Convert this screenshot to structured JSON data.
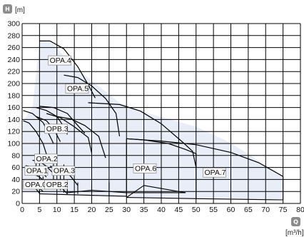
{
  "colors": {
    "region_fill": "#e8edf7",
    "label_fill": "#f7f7f7",
    "axis_letter_bg": "#8c8c8c",
    "grid": "#000000",
    "curve": "#000000"
  },
  "chart_data": {
    "type": "line",
    "xaxis": {
      "letter": "Q",
      "unit": "[m³/h]",
      "lim": [
        0,
        80
      ],
      "ticks": [
        0,
        5,
        10,
        15,
        20,
        25,
        30,
        35,
        40,
        45,
        50,
        55,
        60,
        65,
        70,
        75,
        80
      ]
    },
    "yaxis": {
      "letter": "H",
      "unit": "[m]",
      "lim": [
        0,
        300
      ],
      "ticks": [
        0,
        20,
        40,
        60,
        80,
        100,
        120,
        140,
        160,
        180,
        200,
        220,
        240,
        260,
        280,
        300
      ]
    },
    "grid": true,
    "overall_envelope": [
      [
        0,
        18
      ],
      [
        0.3,
        138
      ],
      [
        3,
        160
      ],
      [
        5,
        271
      ],
      [
        8,
        271
      ],
      [
        15,
        228
      ],
      [
        28,
        168
      ],
      [
        34,
        154
      ],
      [
        50,
        128
      ],
      [
        60,
        101
      ],
      [
        75,
        45
      ],
      [
        75,
        6
      ],
      [
        50,
        8
      ],
      [
        20,
        12
      ],
      [
        5,
        16
      ]
    ],
    "series": [
      {
        "name": "OPA.0",
        "curves": [
          [
            [
              0.3,
              30
            ],
            [
              2,
              29
            ],
            [
              4,
              24
            ],
            [
              5,
              17
            ]
          ],
          [
            [
              0.3,
              37
            ],
            [
              2,
              35
            ],
            [
              4,
              30
            ],
            [
              6,
              20
            ]
          ]
        ]
      },
      {
        "name": "OPB.2",
        "curves": [
          [
            [
              5,
              35
            ],
            [
              8,
              34
            ],
            [
              11,
              28
            ],
            [
              13,
              16
            ]
          ]
        ]
      },
      {
        "name": "OPA.1",
        "curves": [
          [
            [
              1,
              52
            ],
            [
              3,
              50
            ],
            [
              5,
              44
            ],
            [
              7,
              34
            ]
          ],
          [
            [
              1,
              63
            ],
            [
              3,
              61
            ],
            [
              5,
              55
            ],
            [
              7,
              44
            ]
          ]
        ]
      },
      {
        "name": "OPA.2",
        "curves": [
          [
            [
              3,
              72
            ],
            [
              5,
              70
            ],
            [
              7,
              62
            ],
            [
              9,
              50
            ]
          ]
        ]
      },
      {
        "name": "OPA.3",
        "curves": [
          [
            [
              8,
              62
            ],
            [
              10,
              60
            ],
            [
              12,
              55
            ],
            [
              14,
              45
            ],
            [
              16,
              30
            ]
          ]
        ]
      },
      {
        "name": "OPB.3",
        "curves": [
          [
            [
              0.3,
              138
            ],
            [
              2,
              134
            ],
            [
              4,
              120
            ],
            [
              6,
              100
            ],
            [
              7,
              82
            ]
          ],
          [
            [
              0.3,
              155
            ],
            [
              3,
              150
            ],
            [
              6,
              135
            ],
            [
              8,
              112
            ],
            [
              9,
              100
            ]
          ],
          [
            [
              4,
              145
            ],
            [
              7,
              138
            ],
            [
              9,
              125
            ],
            [
              11,
              103
            ]
          ],
          [
            [
              4,
              160
            ],
            [
              7,
              155
            ],
            [
              10,
              145
            ],
            [
              12,
              128
            ],
            [
              13,
              115
            ]
          ],
          [
            [
              5,
              162
            ],
            [
              9,
              160
            ],
            [
              13,
              150
            ],
            [
              16,
              130
            ],
            [
              18,
              117
            ]
          ],
          [
            [
              7,
              150
            ],
            [
              11,
              143
            ],
            [
              15,
              128
            ],
            [
              19,
              110
            ],
            [
              20,
              84
            ]
          ]
        ]
      },
      {
        "name": "OPA.4",
        "curves": [
          [
            [
              5,
              271
            ],
            [
              8,
              271
            ],
            [
              12,
              258
            ],
            [
              16,
              228
            ],
            [
              19,
              198
            ],
            [
              21,
              176
            ]
          ]
        ]
      },
      {
        "name": "OPA.5",
        "curves": [
          [
            [
              12,
              214
            ],
            [
              16,
              210
            ],
            [
              20,
              196
            ],
            [
              24,
              175
            ],
            [
              27,
              150
            ],
            [
              28,
              112
            ]
          ],
          [
            [
              10,
              145
            ],
            [
              14,
              141
            ],
            [
              18,
              130
            ],
            [
              22,
              112
            ],
            [
              24,
              76
            ]
          ]
        ]
      },
      {
        "name": "OPA.6",
        "curves": [
          [
            [
              19,
              168
            ],
            [
              28,
              165
            ],
            [
              34,
              154
            ],
            [
              40,
              133
            ],
            [
              46,
              103
            ],
            [
              49,
              87
            ],
            [
              50,
              60
            ]
          ],
          [
            [
              30,
              108
            ],
            [
              35,
              106
            ],
            [
              42,
              100
            ],
            [
              47,
              90
            ],
            [
              50,
              83
            ]
          ]
        ]
      },
      {
        "name": "OPA.7",
        "curves": [
          [
            [
              30,
              108
            ],
            [
              40,
              104
            ],
            [
              50,
              98
            ],
            [
              60,
              85
            ],
            [
              68,
              68
            ],
            [
              75,
              45
            ]
          ]
        ]
      }
    ],
    "segments": [
      [
        [
          0,
          37
        ],
        [
          0,
          24
        ]
      ],
      [
        [
          5,
          52
        ],
        [
          5,
          17
        ]
      ],
      [
        [
          6,
          45
        ],
        [
          6,
          29
        ]
      ],
      [
        [
          4,
          72
        ],
        [
          4,
          48
        ]
      ],
      [
        [
          9,
          66
        ],
        [
          9,
          25
        ]
      ],
      [
        [
          12,
          65
        ],
        [
          12,
          18
        ]
      ],
      [
        [
          11,
          47
        ],
        [
          11,
          22
        ]
      ],
      [
        [
          13,
          36
        ],
        [
          13,
          16
        ]
      ],
      [
        [
          16,
          35
        ],
        [
          16,
          16
        ]
      ],
      [
        [
          20,
          30
        ],
        [
          20,
          14
        ]
      ],
      [
        [
          25,
          35
        ],
        [
          25,
          13
        ]
      ],
      [
        [
          30,
          108
        ],
        [
          30,
          12
        ]
      ],
      [
        [
          30,
          10
        ],
        [
          35,
          30
        ]
      ],
      [
        [
          35,
          30
        ],
        [
          47,
          18
        ]
      ],
      [
        [
          50,
          83
        ],
        [
          50,
          8
        ]
      ],
      [
        [
          75,
          45
        ],
        [
          75,
          6
        ]
      ],
      [
        [
          30,
          10
        ],
        [
          50,
          8
        ]
      ],
      [
        [
          50,
          8
        ],
        [
          75,
          6
        ]
      ],
      [
        [
          13,
          18
        ],
        [
          20,
          22
        ]
      ],
      [
        [
          20,
          22
        ],
        [
          30,
          18
        ]
      ],
      [
        [
          30,
          18
        ],
        [
          47,
          18
        ]
      ],
      [
        [
          5,
          16
        ],
        [
          30,
          12
        ]
      ]
    ],
    "labels": [
      {
        "text": "OPA.0",
        "x": 0.4,
        "y": 25
      },
      {
        "text": "OPB.2",
        "x": 6.5,
        "y": 25
      },
      {
        "text": "OPA.1",
        "x": 0.8,
        "y": 48
      },
      {
        "text": "OPA.2",
        "x": 3.6,
        "y": 68
      },
      {
        "text": "OPA.3",
        "x": 8.6,
        "y": 48
      },
      {
        "text": "OPB.3",
        "x": 6.5,
        "y": 118
      },
      {
        "text": "OPA.4",
        "x": 7.5,
        "y": 232
      },
      {
        "text": "OPA.5",
        "x": 12.5,
        "y": 185
      },
      {
        "text": "OPA.6",
        "x": 32,
        "y": 52
      },
      {
        "text": "OPA.7",
        "x": 52,
        "y": 45
      }
    ]
  }
}
